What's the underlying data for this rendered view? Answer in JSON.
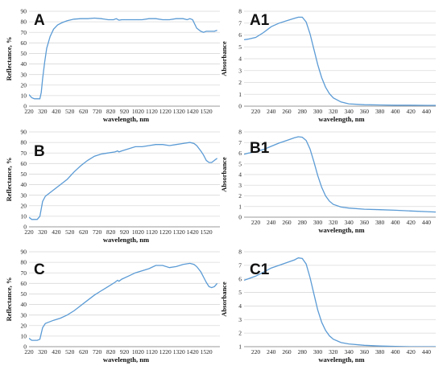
{
  "colors": {
    "series": "#5b9bd5",
    "grid": "#d9d9d9",
    "axis": "#7f7f7f"
  },
  "chart_data": [
    {
      "id": "A",
      "label": "A",
      "type": "line",
      "xlabel": "wavelength, nm",
      "ylabel": "Reflectance, %",
      "xlim": [
        220,
        1620
      ],
      "ylim": [
        0,
        90
      ],
      "xticks": [
        "220",
        "320",
        "420",
        "520",
        "620",
        "720",
        "820",
        "920",
        "1020",
        "1120",
        "1220",
        "1320",
        "1420",
        "1520"
      ],
      "yticks": [
        "0",
        "10",
        "20",
        "30",
        "40",
        "50",
        "60",
        "70",
        "80",
        "90"
      ],
      "grid": true,
      "x": [
        220,
        240,
        260,
        280,
        300,
        310,
        320,
        335,
        350,
        375,
        400,
        430,
        460,
        500,
        550,
        600,
        650,
        700,
        750,
        800,
        840,
        860,
        880,
        900,
        950,
        1000,
        1050,
        1100,
        1150,
        1200,
        1250,
        1300,
        1350,
        1380,
        1400,
        1420,
        1450,
        1480,
        1500,
        1520,
        1550,
        1580,
        1600
      ],
      "y": [
        11,
        8,
        7,
        7,
        7,
        13,
        26,
        42,
        55,
        66,
        73,
        77,
        79,
        81,
        82.5,
        83,
        83,
        83.5,
        83,
        82,
        82,
        83,
        81.5,
        82,
        82,
        82,
        82,
        83,
        83,
        82,
        82,
        83,
        83,
        82,
        83,
        82,
        74,
        71,
        70,
        71,
        71,
        71,
        72
      ]
    },
    {
      "id": "A1",
      "label": "A1",
      "type": "line",
      "xlabel": "wavelength, nm",
      "ylabel": "Absorbance",
      "xlim": [
        205,
        452
      ],
      "ylim": [
        0,
        8
      ],
      "xticks": [
        "220",
        "240",
        "260",
        "280",
        "300",
        "320",
        "340",
        "360",
        "380",
        "400",
        "420",
        "440"
      ],
      "yticks": [
        "0",
        "1",
        "2",
        "3",
        "4",
        "5",
        "6",
        "7",
        "8"
      ],
      "grid": true,
      "x": [
        205,
        210,
        220,
        230,
        240,
        250,
        260,
        270,
        275,
        280,
        285,
        290,
        295,
        300,
        305,
        310,
        315,
        320,
        330,
        340,
        360,
        380,
        400,
        420,
        440,
        452
      ],
      "y": [
        5.6,
        5.65,
        5.8,
        6.2,
        6.7,
        7.0,
        7.2,
        7.4,
        7.5,
        7.5,
        7.1,
        6.1,
        4.8,
        3.5,
        2.4,
        1.6,
        1.05,
        0.7,
        0.35,
        0.2,
        0.12,
        0.1,
        0.08,
        0.08,
        0.07,
        0.07
      ]
    },
    {
      "id": "B",
      "label": "B",
      "type": "line",
      "xlabel": "wavelength, nm",
      "ylabel": "Reflectance, %",
      "xlim": [
        220,
        1620
      ],
      "ylim": [
        0,
        90
      ],
      "xticks": [
        "220",
        "320",
        "420",
        "520",
        "620",
        "720",
        "820",
        "920",
        "1020",
        "1120",
        "1220",
        "1320",
        "1420",
        "1520"
      ],
      "yticks": [
        "0",
        "10",
        "20",
        "30",
        "40",
        "50",
        "60",
        "70",
        "80",
        "90"
      ],
      "grid": true,
      "x": [
        220,
        240,
        260,
        280,
        300,
        310,
        320,
        340,
        360,
        400,
        450,
        500,
        550,
        600,
        650,
        700,
        750,
        800,
        850,
        870,
        880,
        900,
        950,
        1000,
        1050,
        1100,
        1150,
        1200,
        1250,
        1300,
        1350,
        1400,
        1430,
        1450,
        1480,
        1500,
        1520,
        1540,
        1560,
        1580,
        1600
      ],
      "y": [
        9,
        7,
        7,
        7,
        10,
        17,
        24,
        29,
        31,
        35,
        40,
        45,
        52,
        58,
        63,
        67,
        69,
        70,
        71,
        72,
        71,
        72,
        74,
        76,
        76,
        77,
        78,
        78,
        77,
        78,
        79,
        80,
        79,
        77,
        72,
        68,
        63,
        61,
        61,
        63,
        65
      ]
    },
    {
      "id": "B1",
      "label": "B1",
      "type": "line",
      "xlabel": "wavelength, nm",
      "ylabel": "Absorbance",
      "xlim": [
        205,
        452
      ],
      "ylim": [
        0,
        8
      ],
      "xticks": [
        "220",
        "240",
        "260",
        "280",
        "300",
        "320",
        "340",
        "360",
        "380",
        "400",
        "420",
        "440"
      ],
      "yticks": [
        "0",
        "1",
        "2",
        "3",
        "4",
        "5",
        "6",
        "7",
        "8"
      ],
      "grid": true,
      "x": [
        205,
        210,
        220,
        230,
        240,
        250,
        260,
        270,
        275,
        280,
        285,
        290,
        295,
        300,
        305,
        310,
        315,
        320,
        330,
        340,
        360,
        380,
        400,
        420,
        440,
        452
      ],
      "y": [
        5.9,
        6.0,
        6.15,
        6.35,
        6.65,
        6.95,
        7.2,
        7.45,
        7.55,
        7.5,
        7.2,
        6.4,
        5.2,
        3.9,
        2.8,
        2.0,
        1.5,
        1.2,
        0.95,
        0.85,
        0.75,
        0.7,
        0.65,
        0.58,
        0.52,
        0.48
      ]
    },
    {
      "id": "C",
      "label": "C",
      "type": "line",
      "xlabel": "wavelength, nm",
      "ylabel": "Reflectance, %",
      "xlim": [
        220,
        1620
      ],
      "ylim": [
        0,
        90
      ],
      "xticks": [
        "220",
        "320",
        "420",
        "520",
        "620",
        "720",
        "820",
        "920",
        "1020",
        "1120",
        "1220",
        "1320",
        "1420",
        "1520"
      ],
      "yticks": [
        "0",
        "10",
        "20",
        "30",
        "40",
        "50",
        "60",
        "70",
        "80",
        "90"
      ],
      "grid": true,
      "x": [
        220,
        240,
        260,
        280,
        300,
        320,
        340,
        360,
        400,
        450,
        500,
        550,
        600,
        650,
        700,
        750,
        800,
        850,
        870,
        880,
        900,
        950,
        1000,
        1050,
        1100,
        1150,
        1200,
        1250,
        1300,
        1350,
        1400,
        1430,
        1450,
        1480,
        1500,
        1520,
        1540,
        1560,
        1580,
        1600
      ],
      "y": [
        8,
        6,
        6,
        6,
        7,
        18,
        22,
        23,
        25,
        27,
        30,
        34,
        39,
        44,
        49,
        53,
        57,
        61,
        63,
        62,
        64,
        67,
        70,
        72,
        74,
        77,
        77,
        75,
        76,
        78,
        79,
        78,
        76,
        71,
        66,
        61,
        57,
        56,
        57,
        60
      ]
    },
    {
      "id": "C1",
      "label": "C1",
      "type": "line",
      "xlabel": "wavelength, nm",
      "ylabel": "Absorbance",
      "xlim": [
        205,
        452
      ],
      "ylim": [
        1,
        8
      ],
      "xticks": [
        "220",
        "240",
        "260",
        "280",
        "300",
        "320",
        "340",
        "360",
        "380",
        "400",
        "420",
        "440"
      ],
      "yticks": [
        "1",
        "2",
        "3",
        "4",
        "5",
        "6",
        "7",
        "8"
      ],
      "grid": true,
      "x": [
        205,
        210,
        220,
        230,
        240,
        250,
        260,
        270,
        275,
        280,
        285,
        290,
        295,
        300,
        305,
        310,
        315,
        320,
        330,
        340,
        360,
        380,
        400,
        420,
        440,
        452
      ],
      "y": [
        5.9,
        6.0,
        6.2,
        6.5,
        6.8,
        7.0,
        7.2,
        7.4,
        7.55,
        7.5,
        7.1,
        6.1,
        4.9,
        3.7,
        2.8,
        2.2,
        1.8,
        1.55,
        1.3,
        1.2,
        1.1,
        1.05,
        1.02,
        1.0,
        1.0,
        1.0
      ]
    }
  ]
}
